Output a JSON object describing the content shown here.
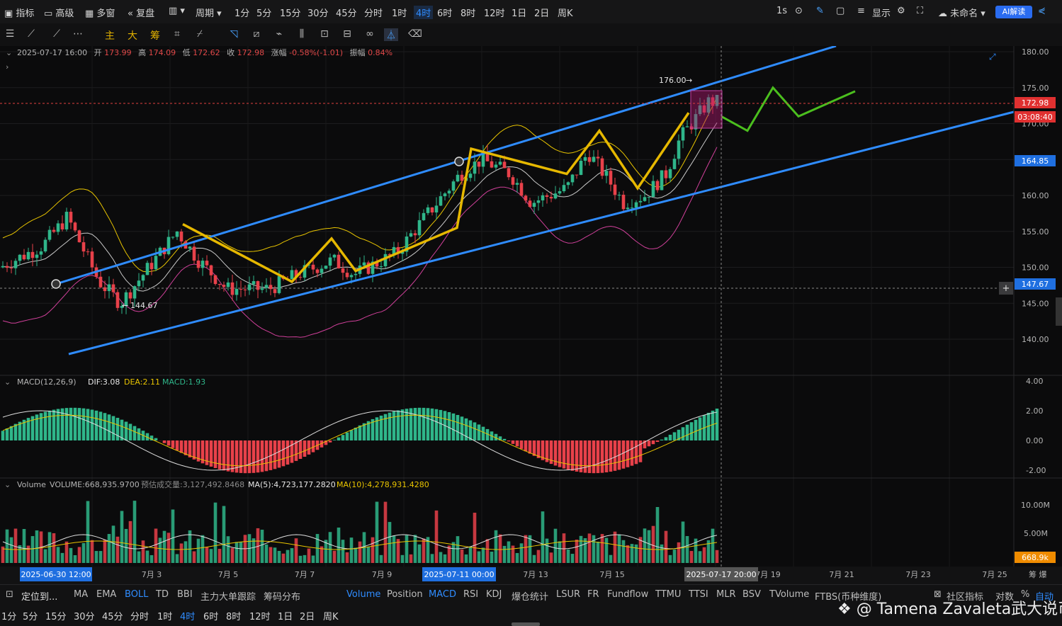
{
  "topbar": {
    "indicator": "指标",
    "advanced": "高级",
    "multi_window": "多窗",
    "replay": "复盘",
    "period": "周期",
    "timeframes": [
      "1分",
      "5分",
      "15分",
      "30分",
      "45分",
      "分时",
      "1时",
      "4时",
      "6时",
      "8时",
      "12时",
      "1日",
      "2日",
      "周K"
    ],
    "active_timeframe": "4时",
    "interval": "1s",
    "display": "显示",
    "unnamed": "未命名",
    "ai_button": "AI解读"
  },
  "drawtools": {
    "labels": [
      "主",
      "大",
      "筹"
    ]
  },
  "ohlc": {
    "time": "2025-07-17 16:00",
    "open_label": "开",
    "open": "173.99",
    "high_label": "高",
    "high": "174.09",
    "low_label": "低",
    "low": "172.62",
    "close_label": "收",
    "close": "172.98",
    "change_label": "涨幅",
    "change": "-0.58%(-1.01)",
    "amp_label": "振幅",
    "amp": "0.84%"
  },
  "price_axis": {
    "ticks": [
      "180.00",
      "175.00",
      "170.00",
      "165.00",
      "160.00",
      "155.00",
      "150.00",
      "145.00",
      "140.00"
    ],
    "current_price": "172.98",
    "countdown": "03:08:40",
    "blue_level": "164.85",
    "crosshair_price": "147.67"
  },
  "annotations": {
    "high_marker": "176.00",
    "low_marker": "144.67"
  },
  "macd": {
    "title": "MACD(12,26,9)",
    "dif": "DIF:3.08",
    "dea": "DEA:2.11",
    "macd": "MACD:1.93",
    "ticks": [
      "4.00",
      "2.00",
      "0.00",
      "-2.00"
    ]
  },
  "volume": {
    "title": "Volume",
    "volume": "VOLUME:668,935.9700",
    "estimate": "预估成交量:3,127,492.8468",
    "ma5": "MA(5):4,723,177.2820",
    "ma10": "MA(10):4,278,931.4280",
    "ticks": [
      "10.00M",
      "5.00M"
    ],
    "current": "668.9k"
  },
  "time_axis": {
    "labels": [
      "7月 3",
      "7月 5",
      "7月 7",
      "7月 9",
      "7月 13",
      "7月 15",
      "7月 19",
      "7月 21",
      "7月 23",
      "7月 25"
    ],
    "highlight_left": "2025-06-30 12:00",
    "highlight_mid": "2025-07-11 00:00",
    "highlight_right": "2025-07-17 20:00",
    "corner": "筹 爆"
  },
  "indicator_bar": {
    "locate": "定位到...",
    "main": [
      "MA",
      "EMA",
      "BOLL",
      "TD",
      "BBI",
      "主力大单跟踪",
      "筹码分布"
    ],
    "active_main": "BOLL",
    "sub": [
      "Volume",
      "Position",
      "MACD",
      "RSI",
      "KDJ",
      "爆仓统计",
      "LSUR",
      "FR",
      "Fundflow",
      "TTMU",
      "TTSI",
      "MLR",
      "BSV",
      "TVolume",
      "FTBS(币种维度)"
    ],
    "active_sub": [
      "Volume",
      "MACD"
    ],
    "community": "社区指标",
    "log": "对数",
    "pct": "%",
    "auto": "自动"
  },
  "bottom_tf": [
    "1分",
    "5分",
    "15分",
    "30分",
    "45分",
    "分时",
    "1时",
    "4时",
    "6时",
    "8时",
    "12时",
    "1日",
    "2日",
    "周K"
  ],
  "watermark": "@ Tamena Zavaleta武大说币",
  "chart_data": {
    "type": "candlestick",
    "price_range": [
      138.0,
      181.0
    ],
    "channel": {
      "upper_start": 147.8,
      "upper_end": 181.5,
      "lower_start": 138.0,
      "lower_end": 171.0
    },
    "yellow_path": [
      156.0,
      148.0,
      154.0,
      149.5,
      155.5,
      166.5,
      163.0,
      169.0,
      161.0,
      171.5
    ],
    "green_projection": [
      171.0,
      169.0,
      175.0,
      171.0,
      174.5
    ],
    "macd_range": [
      -2.0,
      4.0
    ],
    "volume_max": 10.0
  }
}
